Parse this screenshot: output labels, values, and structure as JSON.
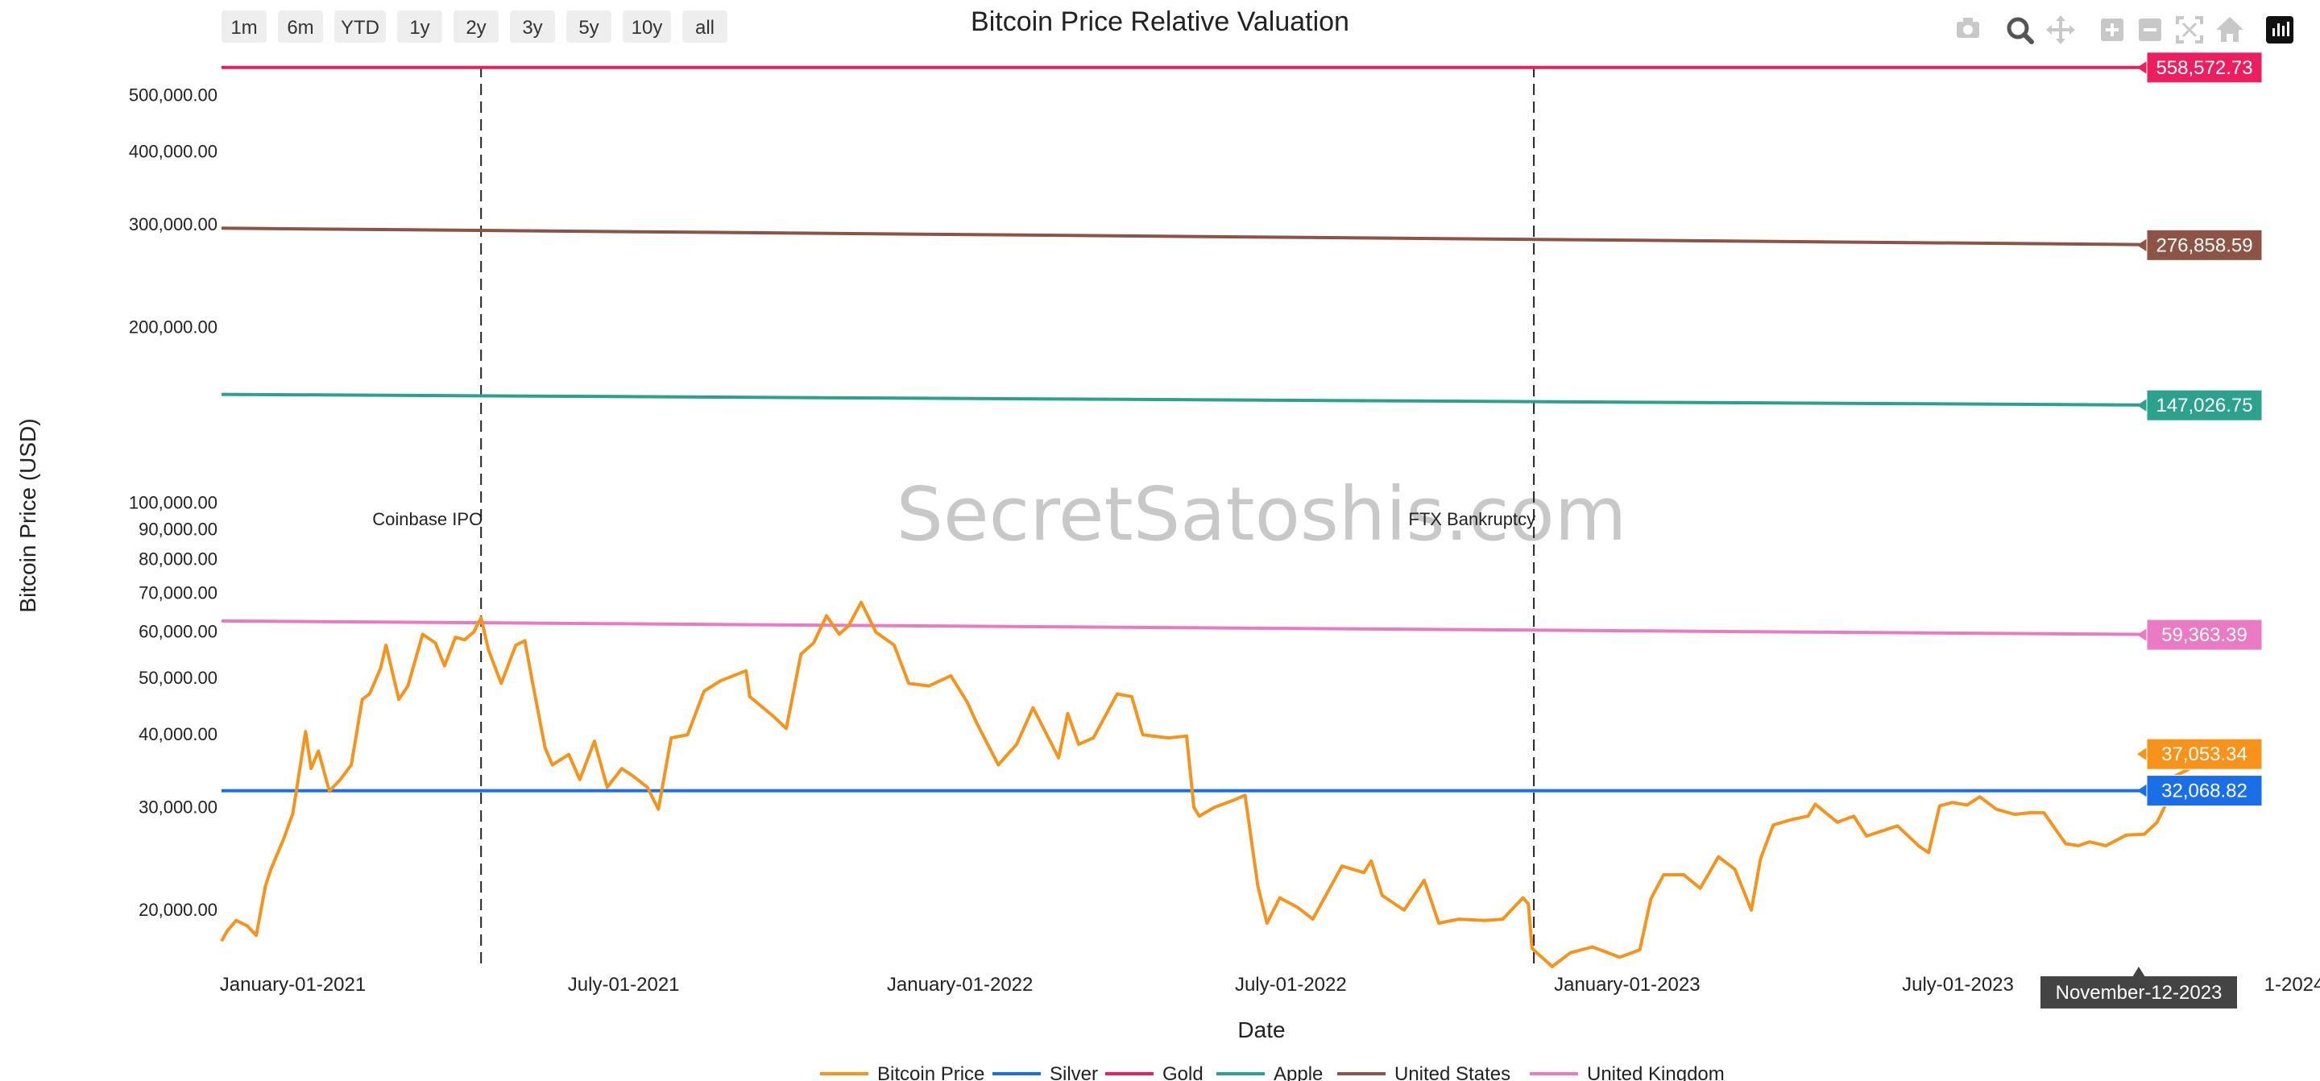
{
  "range_selector": [
    {
      "label": "1m"
    },
    {
      "label": "6m"
    },
    {
      "label": "YTD"
    },
    {
      "label": "1y"
    },
    {
      "label": "2y"
    },
    {
      "label": "3y"
    },
    {
      "label": "5y"
    },
    {
      "label": "10y"
    },
    {
      "label": "all"
    }
  ],
  "modebar": [
    {
      "name": "camera-icon"
    },
    {
      "name": "zoom-icon"
    },
    {
      "name": "pan-icon"
    },
    {
      "name": "zoom-in-icon"
    },
    {
      "name": "zoom-out-icon"
    },
    {
      "name": "autoscale-icon"
    },
    {
      "name": "reset-axes-icon"
    },
    {
      "name": "plotly-logo-icon"
    }
  ],
  "watermark": "SecretSatoshis.com",
  "hover": {
    "x_label": "November-12-2023"
  },
  "chart_data": {
    "type": "line",
    "title": "Bitcoin Price Relative Valuation",
    "xlabel": "Date",
    "ylabel": "Bitcoin Price (USD)",
    "y_scale": "log",
    "ylim": [
      16000,
      580000
    ],
    "xlim": [
      "2020-11-23",
      "2024-01-01"
    ],
    "y_ticks": [
      {
        "value": 20000,
        "label": "20,000.00"
      },
      {
        "value": 30000,
        "label": "30,000.00"
      },
      {
        "value": 40000,
        "label": "40,000.00"
      },
      {
        "value": 50000,
        "label": "50,000.00"
      },
      {
        "value": 60000,
        "label": "60,000.00"
      },
      {
        "value": 70000,
        "label": "70,000.00"
      },
      {
        "value": 80000,
        "label": "80,000.00"
      },
      {
        "value": 90000,
        "label": "90,000.00"
      },
      {
        "value": 100000,
        "label": "100,000.00"
      },
      {
        "value": 200000,
        "label": "200,000.00"
      },
      {
        "value": 300000,
        "label": "300,000.00"
      },
      {
        "value": 400000,
        "label": "400,000.00"
      },
      {
        "value": 500000,
        "label": "500,000.00"
      }
    ],
    "x_ticks": [
      {
        "date": "2021-01-01",
        "label": "January-01-2021"
      },
      {
        "date": "2021-07-01",
        "label": "July-01-2021"
      },
      {
        "date": "2022-01-01",
        "label": "January-01-2022"
      },
      {
        "date": "2022-07-01",
        "label": "July-01-2022"
      },
      {
        "date": "2023-01-01",
        "label": "January-01-2023"
      },
      {
        "date": "2023-07-01",
        "label": "July-01-2023"
      },
      {
        "date": "2024-01-01",
        "label": "1-2024"
      }
    ],
    "grid": false,
    "legend_position": "bottom-center",
    "annotations": [
      {
        "date": "2021-04-14",
        "label": "Coinbase IPO"
      },
      {
        "date": "2022-11-11",
        "label": "FTX Bankruptcy"
      }
    ],
    "series": [
      {
        "name": "Bitcoin Price",
        "color": "#f7931a",
        "end_label": "37,053.34",
        "x": [
          "2020-11-23",
          "2020-11-26",
          "2020-12-01",
          "2020-12-07",
          "2020-12-12",
          "2020-12-17",
          "2020-12-20",
          "2020-12-27",
          "2021-01-01",
          "2021-01-08",
          "2021-01-11",
          "2021-01-15",
          "2021-01-21",
          "2021-01-27",
          "2021-02-02",
          "2021-02-08",
          "2021-02-12",
          "2021-02-18",
          "2021-02-21",
          "2021-02-28",
          "2021-03-05",
          "2021-03-13",
          "2021-03-20",
          "2021-03-25",
          "2021-03-31",
          "2021-04-05",
          "2021-04-10",
          "2021-04-14",
          "2021-04-18",
          "2021-04-25",
          "2021-05-03",
          "2021-05-08",
          "2021-05-12",
          "2021-05-19",
          "2021-05-23",
          "2021-06-01",
          "2021-06-07",
          "2021-06-15",
          "2021-06-22",
          "2021-06-30",
          "2021-07-06",
          "2021-07-14",
          "2021-07-20",
          "2021-07-27",
          "2021-08-05",
          "2021-08-14",
          "2021-08-23",
          "2021-09-06",
          "2021-09-08",
          "2021-09-21",
          "2021-09-28",
          "2021-10-06",
          "2021-10-13",
          "2021-10-20",
          "2021-10-27",
          "2021-11-01",
          "2021-11-08",
          "2021-11-16",
          "2021-11-26",
          "2021-12-04",
          "2021-12-15",
          "2021-12-27",
          "2022-01-05",
          "2022-01-10",
          "2022-01-22",
          "2022-02-01",
          "2022-02-10",
          "2022-02-24",
          "2022-03-01",
          "2022-03-07",
          "2022-03-15",
          "2022-03-28",
          "2022-04-05",
          "2022-04-11",
          "2022-04-25",
          "2022-05-05",
          "2022-05-09",
          "2022-05-12",
          "2022-05-20",
          "2022-06-01",
          "2022-06-06",
          "2022-06-13",
          "2022-06-18",
          "2022-06-25",
          "2022-07-05",
          "2022-07-13",
          "2022-07-29",
          "2022-08-10",
          "2022-08-14",
          "2022-08-20",
          "2022-09-01",
          "2022-09-12",
          "2022-09-20",
          "2022-10-01",
          "2022-10-15",
          "2022-10-25",
          "2022-11-05",
          "2022-11-08",
          "2022-11-10",
          "2022-11-21",
          "2022-12-01",
          "2022-12-13",
          "2022-12-28",
          "2023-01-08",
          "2023-01-14",
          "2023-01-21",
          "2023-02-01",
          "2023-02-10",
          "2023-02-20",
          "2023-03-01",
          "2023-03-10",
          "2023-03-15",
          "2023-03-22",
          "2023-04-01",
          "2023-04-10",
          "2023-04-14",
          "2023-04-26",
          "2023-05-05",
          "2023-05-12",
          "2023-05-29",
          "2023-06-10",
          "2023-06-15",
          "2023-06-21",
          "2023-06-28",
          "2023-07-06",
          "2023-07-13",
          "2023-07-22",
          "2023-08-01",
          "2023-08-10",
          "2023-08-17",
          "2023-08-29",
          "2023-09-05",
          "2023-09-11",
          "2023-09-20",
          "2023-10-01",
          "2023-10-11",
          "2023-10-18",
          "2023-10-23",
          "2023-10-28",
          "2023-11-05",
          "2023-11-09",
          "2023-11-12"
        ],
        "values": [
          17700,
          18400,
          19200,
          18800,
          18100,
          22000,
          23500,
          26500,
          29300,
          40500,
          35000,
          37500,
          32000,
          33500,
          35500,
          46000,
          47000,
          52000,
          57000,
          46000,
          48500,
          59500,
          57500,
          52500,
          58800,
          58200,
          60000,
          63500,
          56000,
          49000,
          57000,
          58000,
          49500,
          38000,
          35500,
          37000,
          33500,
          39000,
          32500,
          35000,
          34000,
          32500,
          29800,
          39500,
          40000,
          47500,
          49500,
          51500,
          46500,
          43000,
          41000,
          55000,
          57500,
          64000,
          59500,
          61500,
          67500,
          60000,
          57000,
          49000,
          48500,
          50500,
          45500,
          42000,
          35500,
          38500,
          44500,
          36500,
          43500,
          38500,
          39500,
          47000,
          46500,
          40000,
          39500,
          39800,
          30000,
          29000,
          30000,
          31000,
          31500,
          22000,
          19000,
          21000,
          20200,
          19300,
          23800,
          23200,
          24300,
          21200,
          20000,
          22500,
          19000,
          19300,
          19200,
          19300,
          21000,
          20500,
          17200,
          16000,
          16900,
          17300,
          16600,
          17100,
          20900,
          23000,
          23000,
          21800,
          24700,
          23500,
          20000,
          24500,
          28000,
          28600,
          29000,
          30400,
          28300,
          29000,
          26800,
          27900,
          25700,
          25100,
          30200,
          30600,
          30300,
          31300,
          29800,
          29200,
          29400,
          29400,
          26000,
          25800,
          26200,
          25800,
          26900,
          27000,
          28300,
          30500,
          34000,
          35000,
          36800,
          37053
        ]
      },
      {
        "name": "Silver",
        "color": "#1a6ee8",
        "end_label": "32,068.82",
        "x": [
          "2020-11-23",
          "2023-11-12"
        ],
        "values": [
          32068.82,
          32068.82
        ]
      },
      {
        "name": "Gold",
        "color": "#ec1f5e",
        "end_label": "558,572.73",
        "x": [
          "2020-11-23",
          "2023-11-12"
        ],
        "values": [
          558572.73,
          558572.73
        ]
      },
      {
        "name": "Apple",
        "color": "#2ba18e",
        "end_label": "147,026.75",
        "x": [
          "2020-11-23",
          "2023-11-12"
        ],
        "values": [
          153500,
          147026.75
        ]
      },
      {
        "name": "United States",
        "color": "#8d5344",
        "end_label": "276,858.59",
        "x": [
          "2020-11-23",
          "2023-11-12"
        ],
        "values": [
          296000,
          276858.59
        ]
      },
      {
        "name": "United Kingdom",
        "color": "#e97ac3",
        "end_label": "59,363.39",
        "x": [
          "2020-11-23",
          "2023-11-12"
        ],
        "values": [
          62700,
          59363.39
        ]
      }
    ]
  }
}
